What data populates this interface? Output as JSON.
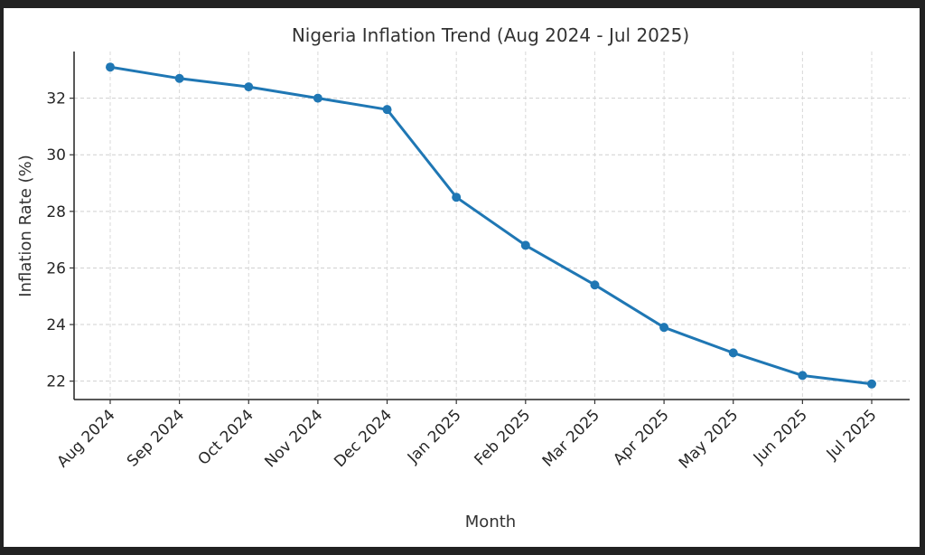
{
  "chart_data": {
    "type": "line",
    "title": "Nigeria Inflation Trend (Aug 2024 - Jul 2025)",
    "xlabel": "Month",
    "ylabel": "Inflation Rate (%)",
    "categories": [
      "Aug 2024",
      "Sep 2024",
      "Oct 2024",
      "Nov 2024",
      "Dec 2024",
      "Jan 2025",
      "Feb 2025",
      "Mar 2025",
      "Apr 2025",
      "May 2025",
      "Jun 2025",
      "Jul 2025"
    ],
    "series": [
      {
        "name": "Inflation Rate (%)",
        "values": [
          33.1,
          32.7,
          32.4,
          32.0,
          31.6,
          28.5,
          26.8,
          25.4,
          23.9,
          23.0,
          22.2,
          21.9
        ],
        "color": "#1f77b4",
        "marker": "circle"
      }
    ],
    "yticks": [
      22,
      24,
      26,
      28,
      30,
      32
    ],
    "ytick_labels": [
      "22",
      "24",
      "26",
      "28",
      "30",
      "32"
    ],
    "ylim": [
      21.35,
      33.65
    ],
    "grid": true,
    "legend": "none"
  }
}
